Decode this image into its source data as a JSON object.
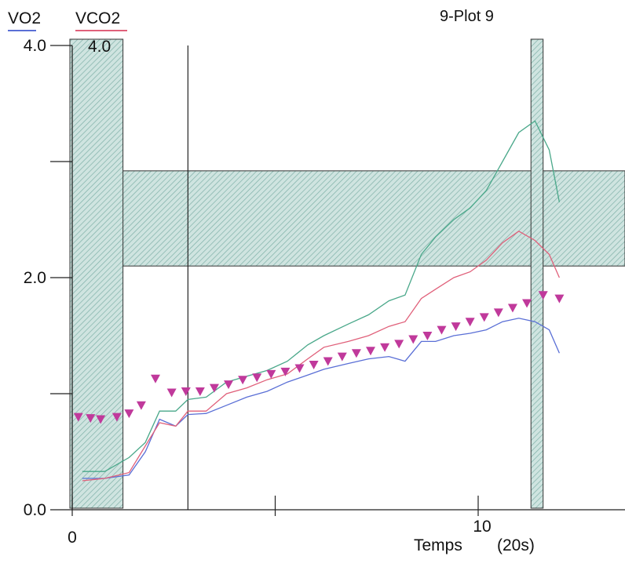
{
  "chart_data": {
    "type": "line",
    "title": "9-Plot 9",
    "xlabel": "Temps",
    "xunit": "(20s)",
    "y_axes": [
      {
        "name": "VO2",
        "color": "#5a6fd6",
        "top_tick": "4.0"
      },
      {
        "name": "VCO2",
        "color": "#e0607a",
        "top_tick": "4.0"
      }
    ],
    "xlim": [
      0,
      13.5
    ],
    "ylim": [
      0,
      4
    ],
    "y_ticks": [
      {
        "value": 0,
        "label": "0.0"
      },
      {
        "value": 1,
        "label": ""
      },
      {
        "value": 2,
        "label": "2.0"
      },
      {
        "value": 3,
        "label": ""
      },
      {
        "value": 4,
        "label": "4.0"
      }
    ],
    "x_ticks": [
      {
        "value": 0,
        "label": "0"
      },
      {
        "value": 5,
        "label": ""
      },
      {
        "value": 10,
        "label": "10"
      }
    ],
    "shaded_vertical_bands": [
      [
        0,
        1.25
      ],
      [
        11.3,
        11.6
      ]
    ],
    "shaded_horizontal_band": {
      "y_min": 2.1,
      "y_max": 2.92
    },
    "vertical_markers": [
      2.85
    ],
    "series": [
      {
        "name": "VO2",
        "style": "line",
        "color": "#5a6fd6",
        "x": [
          0.25,
          0.8,
          1.4,
          1.8,
          2.15,
          2.55,
          2.85,
          3.3,
          3.8,
          4.3,
          4.8,
          5.3,
          5.8,
          6.2,
          6.8,
          7.3,
          7.8,
          8.2,
          8.6,
          8.95,
          9.4,
          9.8,
          10.2,
          10.6,
          11.0,
          11.4,
          11.75,
          12.0
        ],
        "y": [
          0.27,
          0.27,
          0.3,
          0.5,
          0.78,
          0.72,
          0.82,
          0.83,
          0.9,
          0.97,
          1.02,
          1.1,
          1.16,
          1.21,
          1.26,
          1.3,
          1.32,
          1.28,
          1.45,
          1.45,
          1.5,
          1.52,
          1.55,
          1.62,
          1.65,
          1.62,
          1.55,
          1.35
        ]
      },
      {
        "name": "VCO2",
        "style": "line",
        "color": "#e0607a",
        "x": [
          0.25,
          0.8,
          1.4,
          1.8,
          2.15,
          2.55,
          2.85,
          3.3,
          3.8,
          4.3,
          4.8,
          5.3,
          5.8,
          6.2,
          6.8,
          7.3,
          7.8,
          8.2,
          8.6,
          8.95,
          9.4,
          9.8,
          10.2,
          10.6,
          11.0,
          11.4,
          11.75,
          12.0
        ],
        "y": [
          0.25,
          0.27,
          0.32,
          0.55,
          0.75,
          0.72,
          0.85,
          0.85,
          1.0,
          1.05,
          1.12,
          1.17,
          1.3,
          1.4,
          1.45,
          1.5,
          1.58,
          1.62,
          1.82,
          1.9,
          2.0,
          2.05,
          2.15,
          2.3,
          2.4,
          2.32,
          2.2,
          2.0
        ]
      },
      {
        "name": "",
        "style": "line",
        "color": "#4aa88a",
        "x": [
          0.25,
          0.8,
          1.4,
          1.8,
          2.15,
          2.55,
          2.85,
          3.3,
          3.8,
          4.3,
          4.8,
          5.3,
          5.8,
          6.2,
          6.8,
          7.3,
          7.8,
          8.2,
          8.6,
          8.95,
          9.4,
          9.8,
          10.2,
          10.6,
          11.0,
          11.4,
          11.75,
          12.0
        ],
        "y": [
          0.33,
          0.33,
          0.45,
          0.58,
          0.85,
          0.85,
          0.95,
          0.97,
          1.1,
          1.15,
          1.2,
          1.28,
          1.42,
          1.5,
          1.6,
          1.68,
          1.8,
          1.85,
          2.2,
          2.35,
          2.5,
          2.6,
          2.75,
          3.0,
          3.25,
          3.35,
          3.1,
          2.65
        ]
      },
      {
        "name": "",
        "style": "markers",
        "marker": "triangle-down",
        "color": "#c0399b",
        "x": [
          0.15,
          0.45,
          0.7,
          1.1,
          1.4,
          1.7,
          2.05,
          2.45,
          2.8,
          3.15,
          3.5,
          3.85,
          4.2,
          4.55,
          4.9,
          5.25,
          5.6,
          5.95,
          6.3,
          6.65,
          7.0,
          7.35,
          7.7,
          8.05,
          8.4,
          8.75,
          9.1,
          9.45,
          9.8,
          10.15,
          10.5,
          10.85,
          11.2,
          11.6,
          12.0
        ],
        "y": [
          0.8,
          0.79,
          0.78,
          0.8,
          0.83,
          0.9,
          1.13,
          1.01,
          1.02,
          1.02,
          1.05,
          1.08,
          1.12,
          1.14,
          1.17,
          1.19,
          1.22,
          1.25,
          1.28,
          1.32,
          1.35,
          1.37,
          1.4,
          1.43,
          1.47,
          1.5,
          1.55,
          1.58,
          1.62,
          1.66,
          1.7,
          1.74,
          1.78,
          1.85,
          1.82
        ]
      }
    ]
  }
}
